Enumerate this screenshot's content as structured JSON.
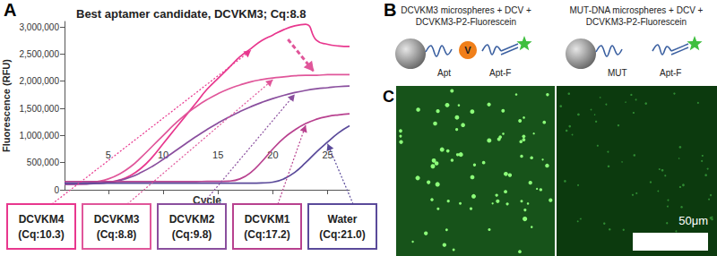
{
  "chart_data": {
    "type": "line",
    "panel_label": "A",
    "title": "Best aptamer candidate, DCVKM3; Cq:8.8",
    "xlabel": "Cycle",
    "ylabel": "Fluorescence (RFU)",
    "x": [
      1,
      2,
      3,
      4,
      5,
      6,
      7,
      8,
      9,
      10,
      11,
      12,
      13,
      14,
      15,
      16,
      17,
      18,
      19,
      20,
      21,
      22,
      23,
      24,
      25,
      26,
      27
    ],
    "xlim": [
      1,
      27
    ],
    "xticks": [
      5,
      10,
      15,
      20,
      25
    ],
    "ylim": [
      0,
      3100000
    ],
    "yticks": [
      0,
      {
        "value": 500000,
        "label": "500,000"
      },
      {
        "value": 1000000,
        "label": "1,000,000"
      },
      {
        "value": 1500000,
        "label": "1,500,000"
      },
      {
        "value": 2000000,
        "label": "2,000,000"
      },
      {
        "value": 2500000,
        "label": "2,500,000"
      },
      {
        "value": 3000000,
        "label": "3,000,000"
      }
    ],
    "grid": false,
    "series": [
      {
        "name": "DCVKM4",
        "annotation": "(Cq:10.3)",
        "color": "#e8378e",
        "values": [
          100000,
          105000,
          110000,
          120000,
          140000,
          180000,
          260000,
          400000,
          600000,
          850000,
          1100000,
          1350000,
          1600000,
          1850000,
          2050000,
          2250000,
          2450000,
          2600000,
          2750000,
          2850000,
          2950000,
          3020000,
          3050000,
          2750000,
          2680000,
          2650000,
          2640000
        ]
      },
      {
        "name": "DCVKM3",
        "annotation": "(Cq:8.8)",
        "color": "#e0569a",
        "values": [
          110000,
          115000,
          125000,
          150000,
          200000,
          290000,
          420000,
          600000,
          800000,
          1000000,
          1200000,
          1380000,
          1530000,
          1660000,
          1770000,
          1860000,
          1930000,
          1990000,
          2030000,
          2060000,
          2080000,
          2100000,
          2110000,
          2110000,
          2120000,
          2120000,
          2120000
        ]
      },
      {
        "name": "DCVKM2",
        "annotation": "(Cq:9.8)",
        "color": "#8a4f9e",
        "values": [
          100000,
          102000,
          106000,
          115000,
          135000,
          170000,
          230000,
          320000,
          430000,
          560000,
          700000,
          840000,
          980000,
          1110000,
          1230000,
          1340000,
          1440000,
          1530000,
          1610000,
          1680000,
          1740000,
          1790000,
          1830000,
          1860000,
          1880000,
          1900000,
          1910000
        ]
      },
      {
        "name": "DCVKM1",
        "annotation": "(Cq:17.2)",
        "color": "#b8418f",
        "values": [
          150000,
          150000,
          150000,
          150000,
          150000,
          150000,
          150000,
          150000,
          150000,
          150000,
          150000,
          150000,
          150000,
          155000,
          155000,
          160000,
          200000,
          320000,
          520000,
          750000,
          950000,
          1100000,
          1220000,
          1300000,
          1350000,
          1380000,
          1400000
        ]
      },
      {
        "name": "Water",
        "annotation": "(Cq:21.0)",
        "color": "#5a4a9a",
        "values": [
          120000,
          120000,
          120000,
          120000,
          120000,
          120000,
          120000,
          120000,
          120000,
          120000,
          120000,
          120000,
          120000,
          120000,
          120000,
          120000,
          120000,
          120000,
          125000,
          140000,
          200000,
          320000,
          500000,
          700000,
          880000,
          1050000,
          1180000
        ]
      }
    ]
  },
  "diagram": {
    "panel_label": "B",
    "panels": [
      {
        "caption": [
          "DCVKM3 microspheres + DCV +",
          "DCVKM3-P2-Fluorescein"
        ],
        "bead_label": "Apt",
        "target_label": "V",
        "probe_label": "Apt-F"
      },
      {
        "caption": [
          "MUT-DNA microspheres + DCV +",
          "DCVKM3-P2-Fluorescein"
        ],
        "bead_label": "MUT",
        "probe_label": "Apt-F"
      }
    ]
  },
  "image": {
    "panel_label": "C",
    "scale_bar": "50μm"
  }
}
